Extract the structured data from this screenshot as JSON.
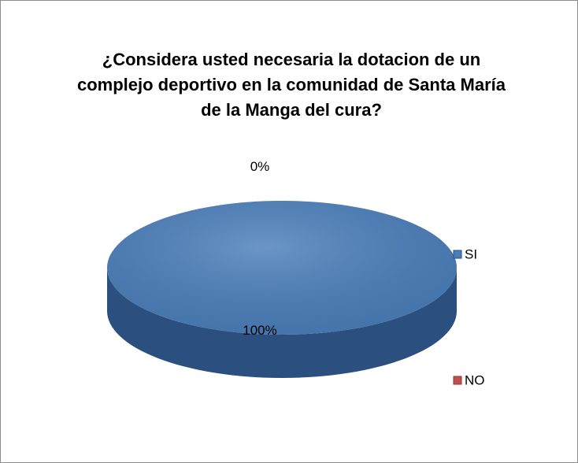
{
  "chart_data": {
    "type": "pie",
    "title": "¿Considera usted necesaria la dotacion de un complejo deportivo en la comunidad de Santa María de la Manga del cura?",
    "categories": [
      "SI",
      "NO"
    ],
    "values": [
      100,
      0
    ],
    "value_labels": [
      "100%",
      "0%"
    ],
    "colors": [
      "#4a7ebb",
      "#c0504d"
    ],
    "side_colors": [
      "#2b4f7e",
      "#8c3836"
    ],
    "legend": "right"
  }
}
